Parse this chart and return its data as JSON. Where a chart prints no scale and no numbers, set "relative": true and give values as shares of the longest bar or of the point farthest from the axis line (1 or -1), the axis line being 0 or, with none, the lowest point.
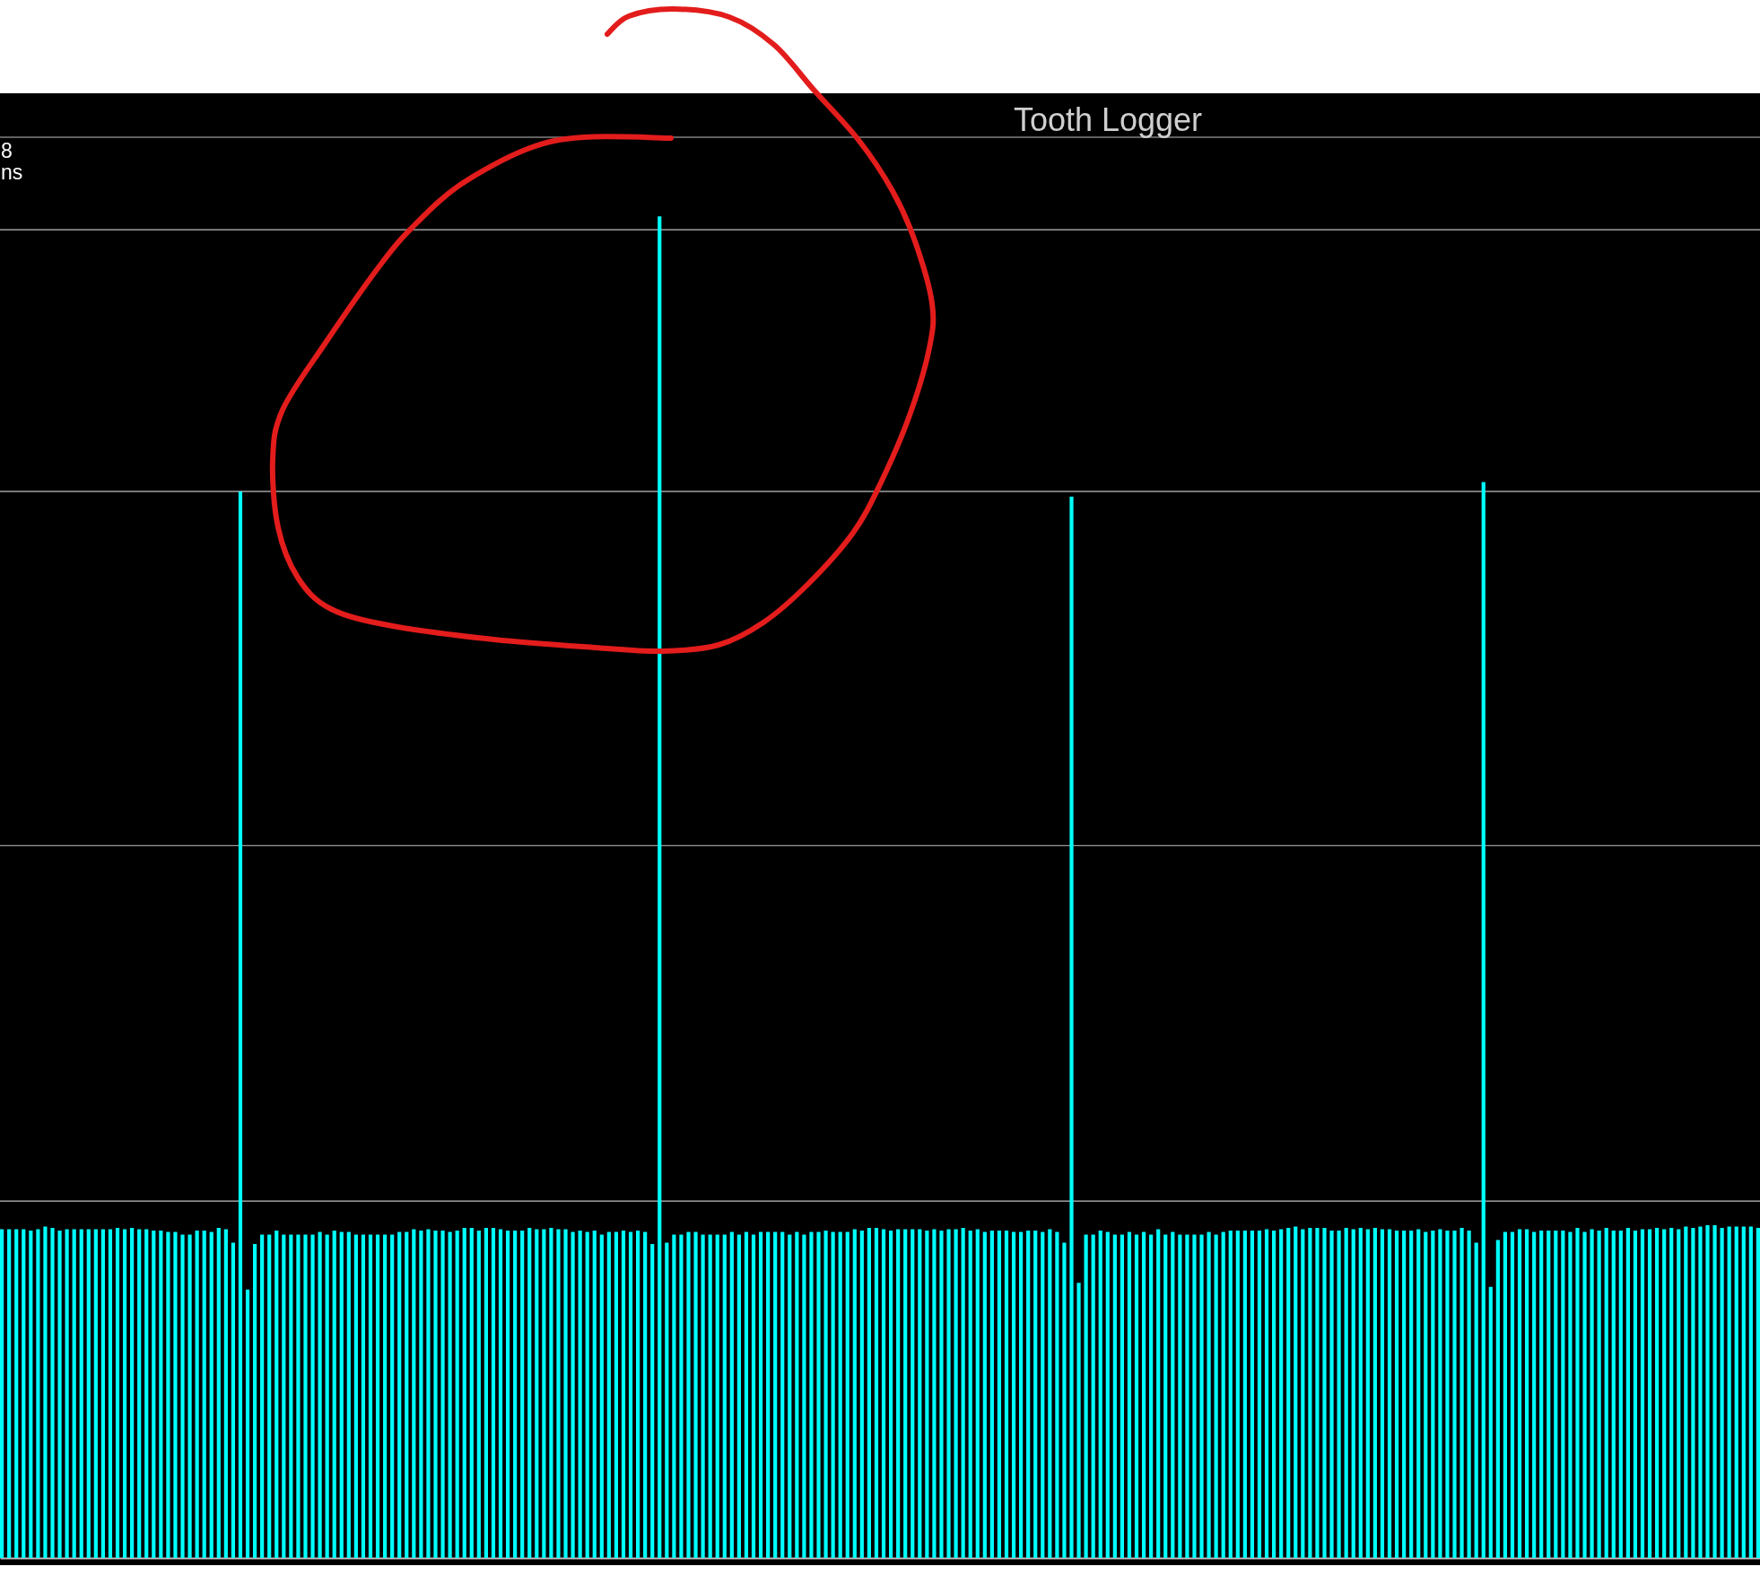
{
  "chart_data": {
    "type": "bar",
    "title": "Tooth Logger",
    "relative": true,
    "color": "#00ffff",
    "ref_lines": [
      {
        "axis": "y",
        "value": 0.266,
        "color": "#c0c0c0"
      },
      {
        "axis": "y",
        "value": 0.531,
        "color": "#c0c0c0"
      },
      {
        "axis": "y",
        "value": 0.795,
        "color": "#c0c0c0"
      },
      {
        "axis": "y",
        "value": 0.99,
        "color": "#c0c0c0"
      },
      {
        "axis": "y",
        "value": 1.059,
        "color": "#c0c0c0"
      }
    ],
    "annotations": [
      "8",
      "ns"
    ],
    "categories": [
      null,
      null,
      null,
      null,
      null,
      null,
      null,
      null,
      null,
      null,
      null,
      null,
      null,
      null,
      null,
      null,
      null,
      null,
      null,
      null,
      null,
      null,
      null,
      null,
      null,
      null,
      null,
      null,
      null,
      null,
      null,
      null,
      null,
      null,
      null,
      null,
      null,
      null,
      null,
      null,
      null,
      null,
      null,
      null,
      null,
      null,
      null,
      null,
      null,
      null,
      null,
      null,
      null,
      null,
      null,
      null,
      null,
      null,
      null,
      null,
      null,
      null,
      null,
      null,
      null,
      null,
      null,
      null,
      null,
      null,
      null,
      null,
      null,
      null,
      null,
      null,
      null,
      null,
      null,
      null,
      null,
      null,
      null,
      null,
      null,
      null,
      null,
      null,
      null,
      null,
      null,
      null,
      null,
      null,
      null,
      null,
      null,
      null,
      null,
      null,
      null,
      null,
      null,
      null,
      null,
      null,
      null,
      null,
      null,
      null,
      null,
      null,
      null,
      null,
      null,
      null,
      null,
      null,
      null,
      null,
      null,
      null,
      null,
      null,
      null,
      null,
      null,
      null,
      null,
      null,
      null,
      null,
      null,
      null,
      null,
      null,
      null,
      null,
      null,
      null,
      null,
      null,
      null,
      null,
      null,
      null,
      null,
      null,
      null,
      null,
      null,
      null,
      null,
      null,
      null,
      null,
      null,
      null,
      null,
      null,
      null,
      null,
      null,
      null,
      null,
      null,
      null,
      null,
      null,
      null,
      null,
      null,
      null,
      null,
      null,
      null,
      null,
      null,
      null,
      null,
      null,
      null,
      null,
      null,
      null,
      null,
      null,
      null,
      null,
      null,
      null,
      null,
      null,
      null,
      null,
      null,
      null,
      null,
      null,
      null,
      null,
      null,
      null,
      null,
      null,
      null,
      null,
      null,
      null,
      null,
      null,
      null,
      null,
      null,
      null,
      null,
      null,
      null,
      null,
      null,
      null,
      null,
      null,
      null,
      null,
      null,
      null,
      null,
      null,
      null,
      null,
      null,
      null,
      null,
      null,
      null,
      null,
      null,
      null,
      null,
      null,
      null,
      null,
      null
    ],
    "values": [
      0.245,
      0.245,
      0.245,
      0.245,
      0.244,
      0.245,
      0.247,
      0.246,
      0.244,
      0.245,
      0.245,
      0.245,
      0.245,
      0.245,
      0.245,
      0.245,
      0.246,
      0.245,
      0.246,
      0.245,
      0.245,
      0.244,
      0.244,
      0.243,
      0.243,
      0.241,
      0.241,
      0.244,
      0.244,
      0.243,
      0.246,
      0.245,
      0.235,
      0.795,
      0.2,
      0.234,
      0.241,
      0.241,
      0.244,
      0.241,
      0.241,
      0.241,
      0.241,
      0.241,
      0.243,
      0.241,
      0.244,
      0.243,
      0.243,
      0.241,
      0.241,
      0.241,
      0.241,
      0.241,
      0.241,
      0.243,
      0.243,
      0.245,
      0.244,
      0.245,
      0.244,
      0.244,
      0.243,
      0.244,
      0.246,
      0.246,
      0.244,
      0.246,
      0.246,
      0.245,
      0.244,
      0.244,
      0.244,
      0.246,
      0.245,
      0.245,
      0.246,
      0.245,
      0.245,
      0.243,
      0.244,
      0.243,
      0.244,
      0.241,
      0.243,
      0.243,
      0.244,
      0.243,
      0.244,
      0.243,
      0.234,
      1,
      0.235,
      0.241,
      0.241,
      0.243,
      0.243,
      0.241,
      0.241,
      0.241,
      0.241,
      0.243,
      0.241,
      0.243,
      0.241,
      0.243,
      0.243,
      0.243,
      0.243,
      0.241,
      0.243,
      0.241,
      0.243,
      0.243,
      0.244,
      0.243,
      0.243,
      0.243,
      0.245,
      0.244,
      0.246,
      0.246,
      0.245,
      0.244,
      0.245,
      0.245,
      0.245,
      0.245,
      0.244,
      0.245,
      0.244,
      0.245,
      0.245,
      0.246,
      0.244,
      0.245,
      0.243,
      0.244,
      0.244,
      0.244,
      0.243,
      0.243,
      0.244,
      0.244,
      0.243,
      0.245,
      0.243,
      0.235,
      0.791,
      0.205,
      0.241,
      0.241,
      0.244,
      0.243,
      0.241,
      0.241,
      0.243,
      0.241,
      0.243,
      0.241,
      0.245,
      0.241,
      0.243,
      0.241,
      0.241,
      0.241,
      0.241,
      0.243,
      0.241,
      0.243,
      0.244,
      0.244,
      0.244,
      0.244,
      0.244,
      0.245,
      0.244,
      0.245,
      0.246,
      0.247,
      0.245,
      0.246,
      0.246,
      0.246,
      0.244,
      0.244,
      0.246,
      0.245,
      0.246,
      0.245,
      0.246,
      0.245,
      0.245,
      0.244,
      0.244,
      0.244,
      0.245,
      0.243,
      0.244,
      0.245,
      0.244,
      0.244,
      0.246,
      0.244,
      0.235,
      0.802,
      0.202,
      0.237,
      0.243,
      0.243,
      0.245,
      0.245,
      0.243,
      0.244,
      0.244,
      0.244,
      0.244,
      0.243,
      0.246,
      0.243,
      0.245,
      0.244,
      0.246,
      0.244,
      0.244,
      0.246,
      0.244,
      0.245,
      0.245,
      0.246,
      0.245,
      0.246,
      0.245,
      0.247,
      0.246,
      0.247,
      0.248,
      0.248,
      0.246,
      0.247,
      0.247,
      0.247,
      0.247,
      0.246
    ]
  }
}
